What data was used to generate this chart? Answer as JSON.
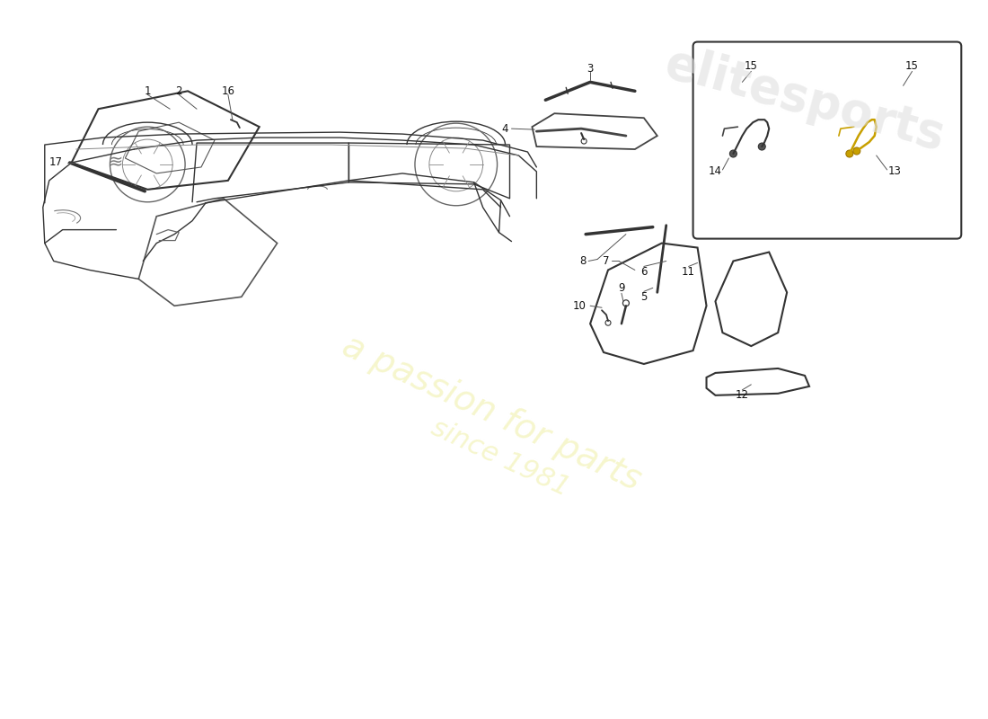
{
  "title": "",
  "background_color": "#ffffff",
  "watermark_text": "a passion for parts since 1981",
  "watermark_color": "#f5f5c8",
  "brand": "elitesports",
  "brand_color": "#e8e8e8",
  "part_numbers": [
    1,
    2,
    3,
    4,
    5,
    6,
    7,
    8,
    9,
    10,
    11,
    12,
    13,
    14,
    15,
    16,
    17
  ],
  "line_color": "#333333",
  "leader_color": "#555555",
  "box_color": "#444444",
  "fig_width": 11.0,
  "fig_height": 8.0,
  "dpi": 100
}
